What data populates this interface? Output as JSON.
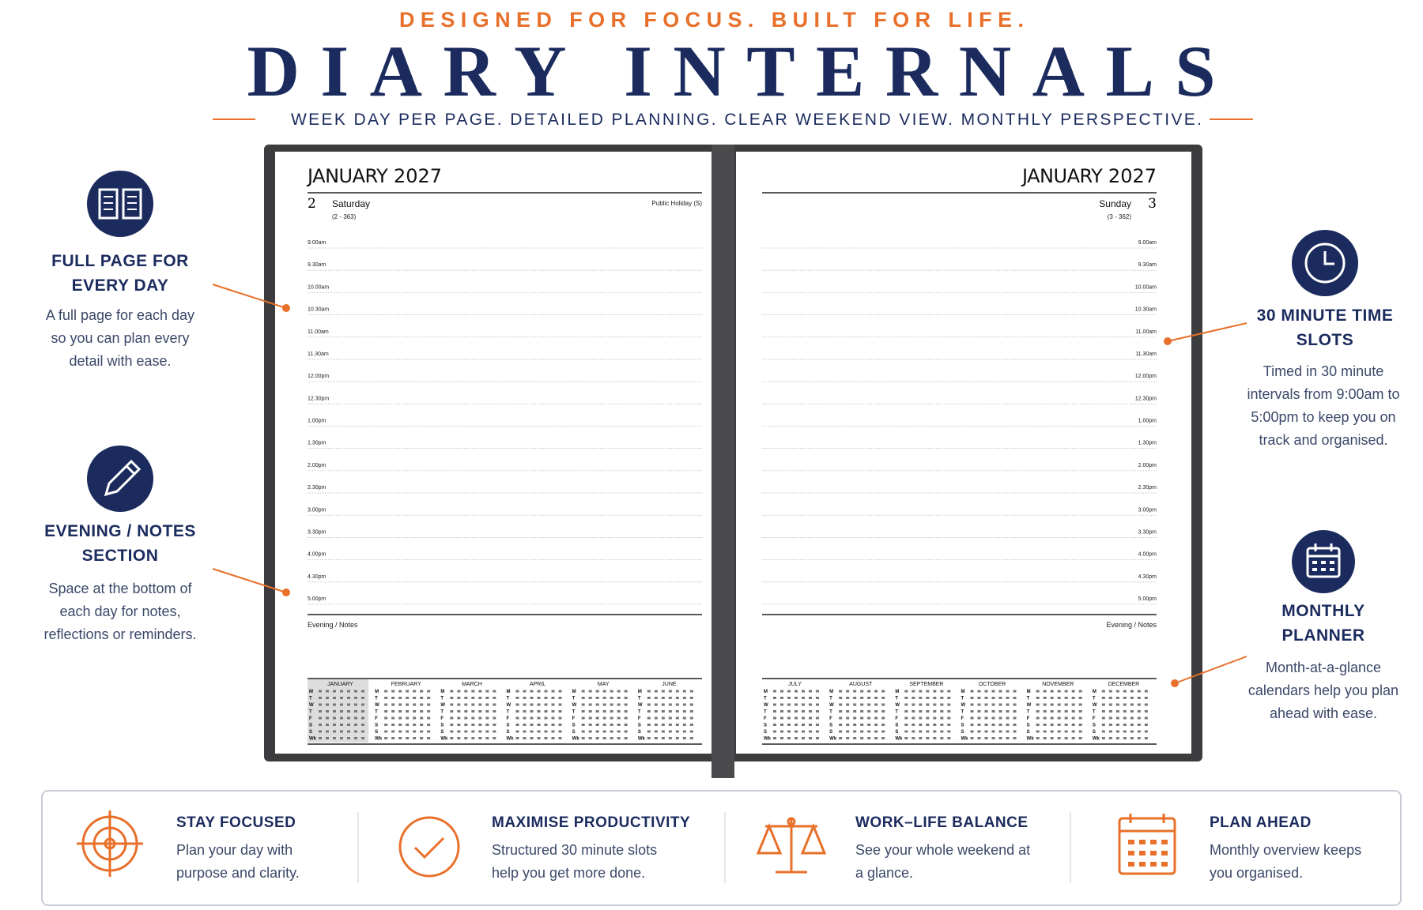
{
  "header": {
    "tagline": "DESIGNED FOR FOCUS. BUILT FOR LIFE.",
    "title": "DIARY INTERNALS",
    "subtitle": "WEEK DAY PER PAGE. DETAILED PLANNING. CLEAR WEEKEND VIEW. MONTHLY PERSPECTIVE."
  },
  "features": [
    {
      "title": "FULL PAGE FOR EVERY DAY",
      "text": "A full page for each day so you can plan every detail with ease."
    },
    {
      "title": "EVENING / NOTES SECTION",
      "text": "Space at the bottom of each day for notes, reflections or reminders."
    },
    {
      "title": "30 MINUTE TIME SLOTS",
      "text": "Timed in 30 minute intervals from 9:00am to 5:00pm to keep you on track and organised."
    },
    {
      "title": "MONTHLY PLANNER",
      "text": "Month-at-a-glance calendars help you plan ahead with ease."
    }
  ],
  "diary": {
    "times": [
      "9.00am",
      "9.30am",
      "10.00am",
      "10.30am",
      "11.00am",
      "11.30am",
      "12.00pm",
      "12.30pm",
      "1.00pm",
      "1.30pm",
      "2.00pm",
      "2.30pm",
      "3.00pm",
      "3.30pm",
      "4.00pm",
      "4.30pm",
      "5.00pm"
    ],
    "weekdays": [
      "M",
      "T",
      "W",
      "T",
      "F",
      "S",
      "S",
      "Wk"
    ],
    "left": {
      "month": "JANUARY",
      "year": "2027",
      "day_number": "2",
      "day_name": "Saturday",
      "day_of_year": "(2 - 363)",
      "note": "Public Holiday (S)",
      "notes_label": "Evening / Notes",
      "calendar_months": [
        "JANUARY",
        "FEBRUARY",
        "MARCH",
        "APRIL",
        "MAY",
        "JUNE"
      ]
    },
    "right": {
      "month": "JANUARY",
      "year": "2027",
      "day_number": "3",
      "day_name": "Sunday",
      "day_of_year": "(3 - 362)",
      "notes_label": "Evening / Notes",
      "calendar_months": [
        "JULY",
        "AUGUST",
        "SEPTEMBER",
        "OCTOBER",
        "NOVEMBER",
        "DECEMBER"
      ]
    }
  },
  "benefits": [
    {
      "title": "STAY FOCUSED",
      "text": "Plan your day with purpose and clarity."
    },
    {
      "title": "MAXIMISE PRODUCTIVITY",
      "text": "Structured 30 minute slots help you get more done."
    },
    {
      "title": "WORK–LIFE BALANCE",
      "text": "See your whole weekend at a glance."
    },
    {
      "title": "PLAN AHEAD",
      "text": "Monthly overview keeps you organised."
    }
  ]
}
